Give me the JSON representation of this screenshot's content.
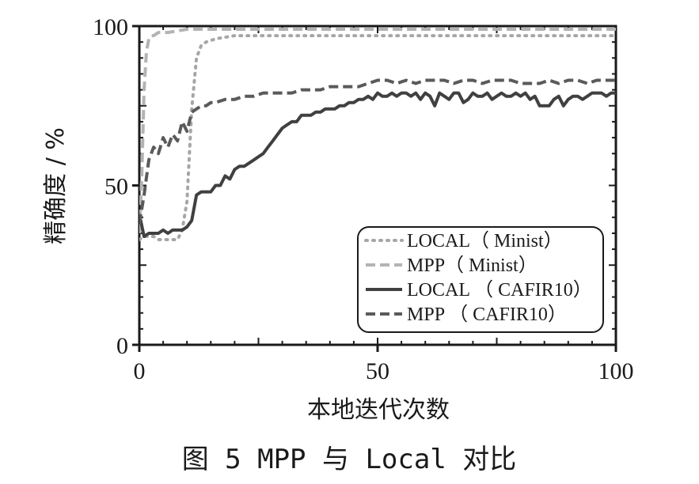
{
  "chart_data": {
    "type": "line",
    "title": "",
    "xlabel": "本地迭代次数",
    "ylabel": "精确度 / %",
    "xlim": [
      0,
      100
    ],
    "ylim": [
      0,
      100
    ],
    "x_ticks": [
      "0",
      "50",
      "100"
    ],
    "y_ticks": [
      "0",
      "50",
      "100"
    ],
    "grid": false,
    "legend_position": "bottom-right",
    "series": [
      {
        "name": "LOCAL（ Minist）",
        "style": "dotted",
        "color": "#a6a6a6",
        "x": [
          0,
          1,
          2,
          3,
          4,
          5,
          6,
          7,
          8,
          9,
          10,
          11,
          12,
          13,
          14,
          16,
          20,
          30,
          40,
          50,
          60,
          70,
          80,
          90,
          100
        ],
        "y": [
          33,
          34,
          34,
          34,
          33,
          33,
          33,
          33,
          33,
          36,
          45,
          74,
          90,
          94,
          95,
          96,
          97,
          97,
          97,
          97,
          97,
          97,
          97,
          97,
          97
        ]
      },
      {
        "name": "MPP（ Minist）",
        "style": "dashed",
        "color": "#b3b3b3",
        "x": [
          0,
          0.5,
          1,
          1.5,
          2,
          2.5,
          3,
          4,
          6,
          10,
          20,
          40,
          60,
          80,
          100
        ],
        "y": [
          35,
          52,
          80,
          92,
          96,
          97,
          97,
          98,
          98,
          99,
          99,
          99,
          99,
          99,
          99
        ]
      },
      {
        "name": "LOCAL （ CAFIR10）",
        "style": "solid",
        "color": "#404040",
        "x": [
          0,
          1,
          2,
          3,
          4,
          5,
          6,
          7,
          8,
          9,
          10,
          11,
          12,
          13,
          14,
          15,
          16,
          17,
          18,
          19,
          20,
          21,
          22,
          23,
          24,
          25,
          26,
          27,
          28,
          29,
          30,
          31,
          32,
          33,
          34,
          35,
          36,
          37,
          38,
          39,
          40,
          41,
          42,
          43,
          44,
          45,
          46,
          47,
          48,
          49,
          50,
          51,
          52,
          53,
          54,
          55,
          56,
          57,
          58,
          59,
          60,
          61,
          62,
          63,
          64,
          65,
          66,
          67,
          68,
          69,
          70,
          71,
          72,
          73,
          74,
          75,
          76,
          77,
          78,
          79,
          80,
          81,
          82,
          83,
          84,
          85,
          86,
          87,
          88,
          89,
          90,
          91,
          92,
          93,
          94,
          95,
          96,
          97,
          98,
          99,
          100
        ],
        "y": [
          41,
          34,
          35,
          35,
          35,
          36,
          35,
          36,
          36,
          36,
          37,
          39,
          47,
          48,
          48,
          48,
          50,
          50,
          53,
          52,
          55,
          56,
          56,
          57,
          58,
          59,
          60,
          62,
          64,
          66,
          68,
          69,
          70,
          70,
          72,
          72,
          72,
          73,
          73,
          74,
          74,
          74,
          75,
          75,
          76,
          76,
          77,
          77,
          78,
          77,
          79,
          78,
          78,
          79,
          78,
          79,
          79,
          78,
          79,
          77,
          79,
          78,
          75,
          79,
          78,
          77,
          79,
          79,
          76,
          77,
          79,
          78,
          78,
          79,
          77,
          78,
          79,
          78,
          78,
          79,
          78,
          79,
          77,
          78,
          75,
          75,
          75,
          77,
          78,
          75,
          77,
          78,
          78,
          77,
          78,
          79,
          79,
          79,
          78,
          79,
          79
        ]
      },
      {
        "name": "MPP （ CAFIR10）",
        "style": "dashed",
        "color": "#5a5a5a",
        "x": [
          0,
          1,
          2,
          3,
          4,
          5,
          6,
          7,
          8,
          9,
          10,
          11,
          12,
          13,
          14,
          15,
          16,
          18,
          20,
          22,
          24,
          26,
          28,
          30,
          32,
          34,
          36,
          38,
          40,
          42,
          44,
          46,
          48,
          50,
          52,
          54,
          56,
          58,
          60,
          62,
          64,
          66,
          68,
          70,
          72,
          74,
          76,
          78,
          80,
          82,
          84,
          86,
          88,
          90,
          92,
          94,
          96,
          98,
          100
        ],
        "y": [
          38,
          47,
          58,
          62,
          60,
          65,
          62,
          66,
          64,
          70,
          67,
          73,
          74,
          75,
          75,
          76,
          76,
          77,
          77,
          78,
          78,
          79,
          79,
          79,
          79,
          80,
          80,
          80,
          81,
          81,
          81,
          81,
          82,
          83,
          83,
          82,
          83,
          82,
          83,
          83,
          83,
          82,
          83,
          83,
          82,
          83,
          83,
          83,
          82,
          82,
          82,
          83,
          82,
          83,
          83,
          82,
          83,
          83,
          83
        ]
      }
    ]
  },
  "caption": "图 5  MPP 与 Local 对比"
}
